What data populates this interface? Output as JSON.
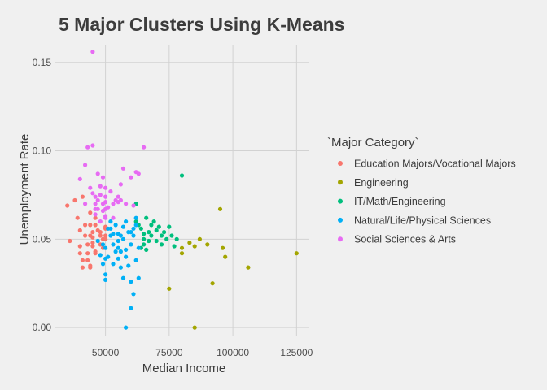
{
  "chart_data": {
    "type": "scatter",
    "title": "5 Major Clusters Using K-Means",
    "xlabel": "Median Income",
    "ylabel": "Unemployment Rate",
    "xlim": [
      30000,
      130000
    ],
    "ylim": [
      -0.005,
      0.16
    ],
    "x_ticks": [
      50000,
      75000,
      100000,
      125000
    ],
    "x_tick_labels": [
      "50000",
      "75000",
      "100000",
      "125000"
    ],
    "y_ticks": [
      0.0,
      0.05,
      0.1,
      0.15
    ],
    "y_tick_labels": [
      "0.00",
      "0.05",
      "0.10",
      "0.15"
    ],
    "grid": true,
    "legend": {
      "title": "`Major Category`",
      "position": "right"
    },
    "series": [
      {
        "name": "Education Majors/Vocational Majors",
        "color": "#f8766d",
        "points": [
          [
            35000,
            0.069
          ],
          [
            36000,
            0.049
          ],
          [
            38000,
            0.072
          ],
          [
            39000,
            0.062
          ],
          [
            40000,
            0.055
          ],
          [
            40000,
            0.046
          ],
          [
            40000,
            0.042
          ],
          [
            41000,
            0.038
          ],
          [
            41000,
            0.034
          ],
          [
            41000,
            0.074
          ],
          [
            42000,
            0.058
          ],
          [
            42000,
            0.052
          ],
          [
            43000,
            0.047
          ],
          [
            43000,
            0.042
          ],
          [
            43000,
            0.038
          ],
          [
            44000,
            0.034
          ],
          [
            44000,
            0.058
          ],
          [
            44000,
            0.052
          ],
          [
            44000,
            0.065
          ],
          [
            45000,
            0.051
          ],
          [
            45000,
            0.046
          ],
          [
            45000,
            0.048
          ],
          [
            46000,
            0.042
          ],
          [
            46000,
            0.058
          ],
          [
            46000,
            0.062
          ],
          [
            46000,
            0.043
          ],
          [
            47000,
            0.049
          ],
          [
            47000,
            0.055
          ],
          [
            48000,
            0.052
          ],
          [
            48000,
            0.047
          ],
          [
            48000,
            0.054
          ],
          [
            49000,
            0.05
          ],
          [
            49000,
            0.045
          ],
          [
            50000,
            0.056
          ],
          [
            50000,
            0.052
          ],
          [
            50000,
            0.05
          ],
          [
            50000,
            0.057
          ],
          [
            44000,
            0.035
          ],
          [
            45000,
            0.054
          ]
        ]
      },
      {
        "name": "Engineering",
        "color": "#a3a500",
        "points": [
          [
            75000,
            0.022
          ],
          [
            80000,
            0.045
          ],
          [
            80000,
            0.042
          ],
          [
            83000,
            0.048
          ],
          [
            85000,
            0.046
          ],
          [
            85000,
            0.0
          ],
          [
            87000,
            0.05
          ],
          [
            90000,
            0.047
          ],
          [
            92000,
            0.025
          ],
          [
            95000,
            0.067
          ],
          [
            96000,
            0.045
          ],
          [
            97000,
            0.04
          ],
          [
            106000,
            0.034
          ],
          [
            125000,
            0.042
          ]
        ]
      },
      {
        "name": "IT/Math/Engineering",
        "color": "#00bf7d",
        "points": [
          [
            62000,
            0.07
          ],
          [
            63000,
            0.058
          ],
          [
            64000,
            0.056
          ],
          [
            65000,
            0.053
          ],
          [
            65000,
            0.05
          ],
          [
            65000,
            0.047
          ],
          [
            66000,
            0.062
          ],
          [
            67000,
            0.054
          ],
          [
            67000,
            0.049
          ],
          [
            68000,
            0.052
          ],
          [
            68000,
            0.058
          ],
          [
            69000,
            0.06
          ],
          [
            70000,
            0.055
          ],
          [
            70000,
            0.049
          ],
          [
            71000,
            0.057
          ],
          [
            72000,
            0.052
          ],
          [
            72000,
            0.047
          ],
          [
            73000,
            0.054
          ],
          [
            74000,
            0.05
          ],
          [
            75000,
            0.057
          ],
          [
            76000,
            0.052
          ],
          [
            77000,
            0.046
          ],
          [
            78000,
            0.05
          ],
          [
            80000,
            0.086
          ],
          [
            62000,
            0.06
          ],
          [
            64000,
            0.045
          ],
          [
            66000,
            0.044
          ]
        ]
      },
      {
        "name": "Natural/Life/Physical Sciences",
        "color": "#00b0f6",
        "points": [
          [
            47000,
            0.049
          ],
          [
            48000,
            0.041
          ],
          [
            49000,
            0.047
          ],
          [
            49000,
            0.036
          ],
          [
            50000,
            0.045
          ],
          [
            50000,
            0.039
          ],
          [
            50000,
            0.03
          ],
          [
            51000,
            0.056
          ],
          [
            51000,
            0.04
          ],
          [
            52000,
            0.06
          ],
          [
            52000,
            0.052
          ],
          [
            53000,
            0.047
          ],
          [
            53000,
            0.036
          ],
          [
            54000,
            0.058
          ],
          [
            55000,
            0.053
          ],
          [
            55000,
            0.049
          ],
          [
            55000,
            0.039
          ],
          [
            56000,
            0.043
          ],
          [
            56000,
            0.034
          ],
          [
            57000,
            0.05
          ],
          [
            57000,
            0.028
          ],
          [
            58000,
            0.06
          ],
          [
            58000,
            0.04
          ],
          [
            58000,
            0.0
          ],
          [
            59000,
            0.054
          ],
          [
            59000,
            0.035
          ],
          [
            60000,
            0.047
          ],
          [
            60000,
            0.026
          ],
          [
            60000,
            0.011
          ],
          [
            61000,
            0.052
          ],
          [
            61000,
            0.019
          ],
          [
            62000,
            0.058
          ],
          [
            62000,
            0.038
          ],
          [
            63000,
            0.028
          ],
          [
            63000,
            0.045
          ],
          [
            50000,
            0.027
          ],
          [
            52000,
            0.056
          ],
          [
            54000,
            0.043
          ],
          [
            56000,
            0.052
          ],
          [
            58000,
            0.044
          ],
          [
            60000,
            0.054
          ],
          [
            62000,
            0.062
          ],
          [
            57000,
            0.057
          ],
          [
            53000,
            0.053
          ],
          [
            55000,
            0.045
          ],
          [
            61000,
            0.056
          ]
        ]
      },
      {
        "name": "Social Sciences & Arts",
        "color": "#e76bf3",
        "points": [
          [
            40000,
            0.084
          ],
          [
            42000,
            0.07
          ],
          [
            42000,
            0.092
          ],
          [
            43000,
            0.102
          ],
          [
            44000,
            0.079
          ],
          [
            45000,
            0.076
          ],
          [
            45000,
            0.103
          ],
          [
            45000,
            0.156
          ],
          [
            46000,
            0.07
          ],
          [
            46000,
            0.074
          ],
          [
            46000,
            0.064
          ],
          [
            47000,
            0.087
          ],
          [
            47000,
            0.067
          ],
          [
            47000,
            0.072
          ],
          [
            48000,
            0.08
          ],
          [
            48000,
            0.06
          ],
          [
            48000,
            0.075
          ],
          [
            49000,
            0.085
          ],
          [
            49000,
            0.07
          ],
          [
            49000,
            0.066
          ],
          [
            50000,
            0.063
          ],
          [
            50000,
            0.067
          ],
          [
            50000,
            0.071
          ],
          [
            50000,
            0.079
          ],
          [
            50000,
            0.062
          ],
          [
            50000,
            0.074
          ],
          [
            51000,
            0.068
          ],
          [
            52000,
            0.077
          ],
          [
            53000,
            0.07
          ],
          [
            54000,
            0.072
          ],
          [
            55000,
            0.071
          ],
          [
            55000,
            0.074
          ],
          [
            56000,
            0.072
          ],
          [
            56000,
            0.081
          ],
          [
            57000,
            0.09
          ],
          [
            58000,
            0.07
          ],
          [
            60000,
            0.085
          ],
          [
            61000,
            0.069
          ],
          [
            62000,
            0.088
          ],
          [
            63000,
            0.087
          ],
          [
            65000,
            0.102
          ],
          [
            53000,
            0.062
          ],
          [
            46000,
            0.067
          ]
        ]
      }
    ]
  }
}
